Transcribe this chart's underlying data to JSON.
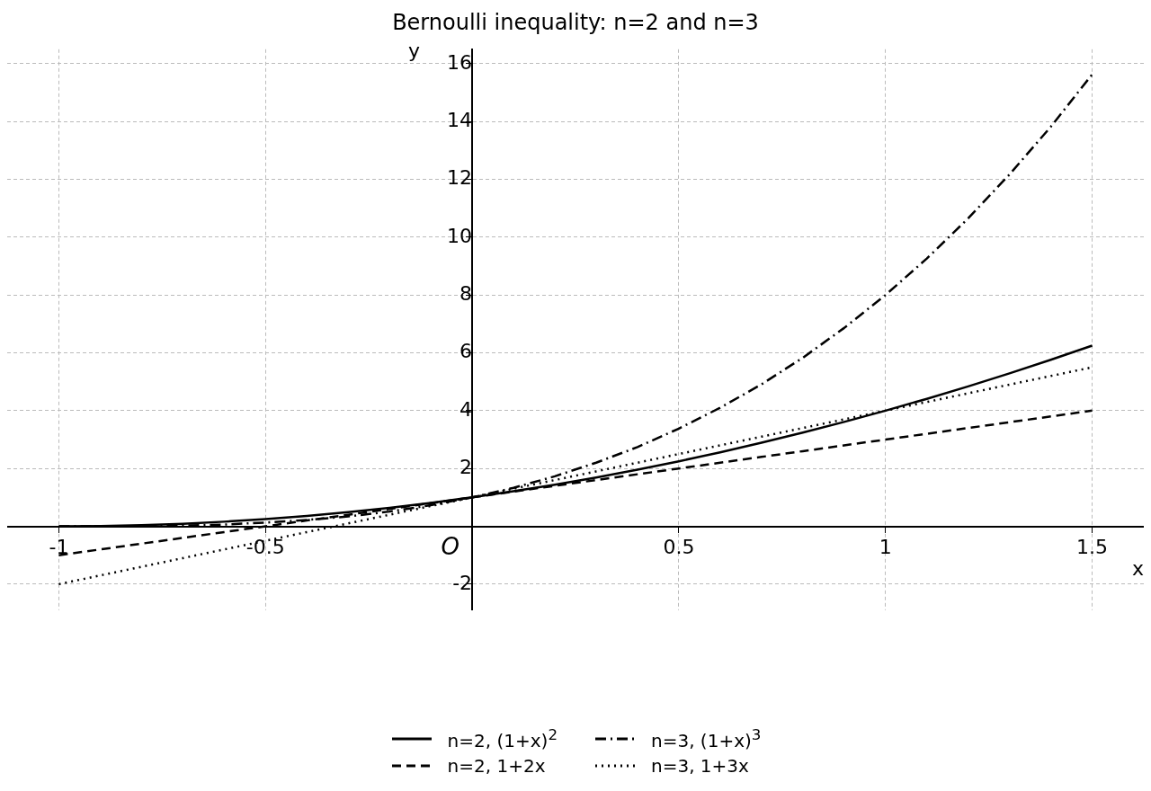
{
  "chart_data": {
    "type": "line",
    "title": "Bernoulli inequality: n=2 and n=3",
    "xlabel": "x",
    "ylabel": "y",
    "x": [
      -1,
      -0.9,
      -0.8,
      -0.7,
      -0.6,
      -0.5,
      -0.4,
      -0.3,
      -0.2,
      -0.1,
      0,
      0.1,
      0.2,
      0.3,
      0.4,
      0.5,
      0.6,
      0.7,
      0.8,
      0.9,
      1,
      1.1,
      1.2,
      1.3,
      1.4,
      1.5
    ],
    "series": [
      {
        "name": "n=2, (1+x)$^{2}$",
        "color": "#000000",
        "line_style": "solid",
        "values": [
          0,
          0.01,
          0.04,
          0.09,
          0.16,
          0.25,
          0.36,
          0.49,
          0.64,
          0.81,
          1,
          1.21,
          1.44,
          1.69,
          1.96,
          2.25,
          2.56,
          2.89,
          3.24,
          3.61,
          4,
          4.41,
          4.84,
          5.29,
          5.76,
          6.25
        ]
      },
      {
        "name": "n=2, 1+2x",
        "color": "#000000",
        "line_style": "dashed",
        "values": [
          -1,
          -0.8,
          -0.6,
          -0.4,
          -0.2,
          0,
          0.2,
          0.4,
          0.6,
          0.8,
          1,
          1.2,
          1.4,
          1.6,
          1.8,
          2,
          2.2,
          2.4,
          2.6,
          2.8,
          3,
          3.2,
          3.4,
          3.6,
          3.8,
          4
        ]
      },
      {
        "name": "n=3, (1+x)$^{3}$",
        "color": "#000000",
        "line_style": "dashdot",
        "values": [
          0,
          0,
          0.01,
          0.03,
          0.06,
          0.13,
          0.22,
          0.34,
          0.51,
          0.73,
          1,
          1.33,
          1.73,
          2.2,
          2.74,
          3.38,
          4.1,
          4.91,
          5.83,
          6.86,
          8,
          9.26,
          10.65,
          12.17,
          13.82,
          15.63
        ]
      },
      {
        "name": "n=3, 1+3x",
        "color": "#000000",
        "line_style": "dotted",
        "values": [
          -2,
          -1.7,
          -1.4,
          -1.1,
          -0.8,
          -0.5,
          -0.2,
          0.1,
          0.4,
          0.7,
          1,
          1.3,
          1.6,
          1.9,
          2.2,
          2.5,
          2.8,
          3.1,
          3.4,
          3.7,
          4,
          4.3,
          4.6,
          4.9,
          5.2,
          5.5
        ]
      }
    ],
    "xlim": [
      -1.125,
      1.625
    ],
    "ylim": [
      -2.9,
      16.5
    ],
    "xticks": [
      -1,
      -0.5,
      0.5,
      1,
      1.5
    ],
    "yticks": [
      -2,
      2,
      4,
      6,
      8,
      10,
      12,
      14,
      16
    ],
    "annotations": [
      "O"
    ],
    "grid": true,
    "legend": "bottom",
    "marker": "none"
  }
}
